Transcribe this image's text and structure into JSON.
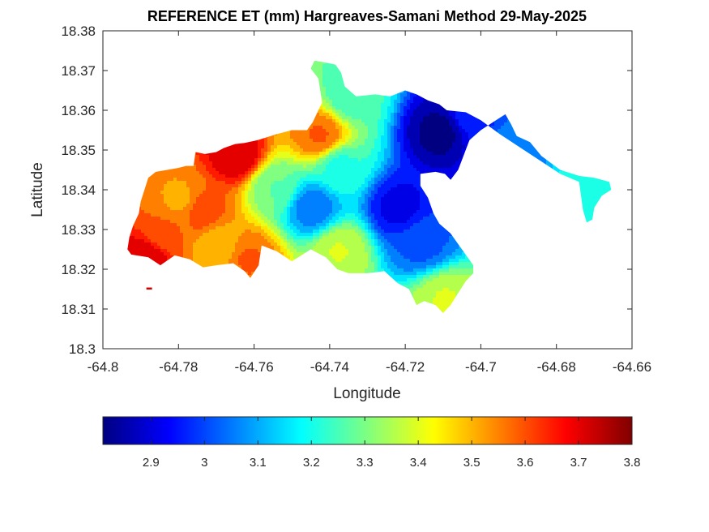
{
  "chart_data": {
    "type": "heatmap",
    "title": "REFERENCE ET (mm) Hargreaves-Samani Method  29-May-2025",
    "xlabel": "Longitude",
    "ylabel": "Latitude",
    "xlim": [
      -64.8,
      -64.66
    ],
    "ylim": [
      18.3,
      18.38
    ],
    "x_ticks": [
      "-64.8",
      "-64.78",
      "-64.76",
      "-64.74",
      "-64.72",
      "-64.7",
      "-64.68",
      "-64.66"
    ],
    "y_ticks": [
      "18.3",
      "18.31",
      "18.32",
      "18.33",
      "18.34",
      "18.35",
      "18.36",
      "18.37",
      "18.38"
    ],
    "grid": false,
    "colormap": "jet",
    "colorbar": {
      "position": "bottom",
      "range": [
        2.81,
        3.8
      ],
      "ticks": [
        "2.9",
        "3",
        "3.1",
        "3.2",
        "3.3",
        "3.4",
        "3.5",
        "3.6",
        "3.7",
        "3.8"
      ]
    },
    "field_samples": [
      {
        "lon": -64.789,
        "lat": 18.323,
        "value": 3.72
      },
      {
        "lon": -64.784,
        "lat": 18.33,
        "value": 3.58
      },
      {
        "lon": -64.78,
        "lat": 18.338,
        "value": 3.52
      },
      {
        "lon": -64.774,
        "lat": 18.335,
        "value": 3.6
      },
      {
        "lon": -64.77,
        "lat": 18.326,
        "value": 3.48
      },
      {
        "lon": -64.765,
        "lat": 18.349,
        "value": 3.72
      },
      {
        "lon": -64.762,
        "lat": 18.323,
        "value": 3.58
      },
      {
        "lon": -64.755,
        "lat": 18.341,
        "value": 3.28
      },
      {
        "lon": -64.745,
        "lat": 18.336,
        "value": 3.05
      },
      {
        "lon": -64.743,
        "lat": 18.354,
        "value": 3.58
      },
      {
        "lon": -64.738,
        "lat": 18.325,
        "value": 3.38
      },
      {
        "lon": -64.738,
        "lat": 18.346,
        "value": 3.22
      },
      {
        "lon": -64.735,
        "lat": 18.364,
        "value": 3.25
      },
      {
        "lon": -64.722,
        "lat": 18.336,
        "value": 2.92
      },
      {
        "lon": -64.716,
        "lat": 18.327,
        "value": 3.02
      },
      {
        "lon": -64.711,
        "lat": 18.355,
        "value": 2.82
      },
      {
        "lon": -64.71,
        "lat": 18.313,
        "value": 3.38
      },
      {
        "lon": -64.703,
        "lat": 18.359,
        "value": 2.96
      },
      {
        "lon": -64.692,
        "lat": 18.351,
        "value": 3.06
      },
      {
        "lon": -64.672,
        "lat": 18.339,
        "value": 3.22
      }
    ]
  }
}
